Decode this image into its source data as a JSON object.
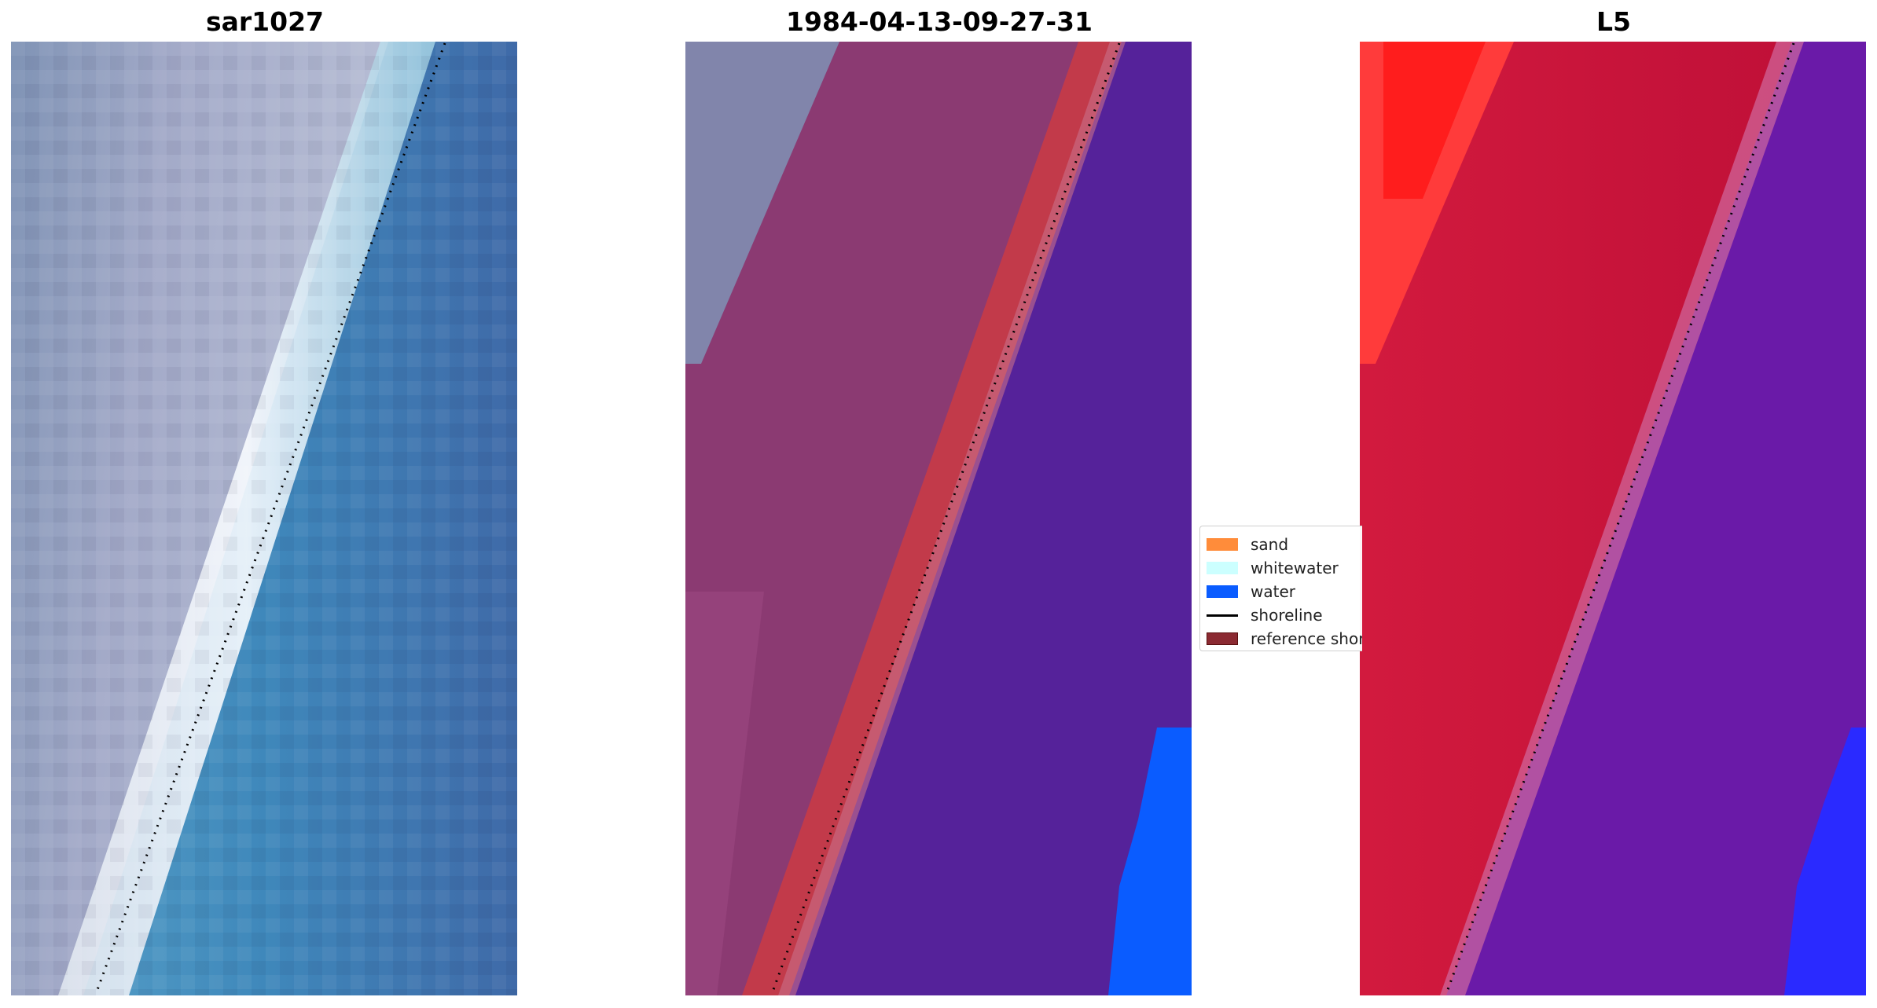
{
  "panels": [
    {
      "title": "sar1027"
    },
    {
      "title": "1984-04-13-09-27-31"
    },
    {
      "title": "L5"
    }
  ],
  "legend": {
    "entries": [
      {
        "label": "sand",
        "color": "#ff8c3a"
      },
      {
        "label": "whitewater",
        "color": "#ccffff"
      },
      {
        "label": "water",
        "color": "#0a5cff"
      },
      {
        "label": "shoreline",
        "color": "#000000"
      },
      {
        "label": "reference shoreline",
        "color": "#8b2a32"
      }
    ]
  },
  "colors": {
    "land_gray": "#9ea8c4",
    "sea_blue": "#4588bd",
    "classified_land": "#8b3a72",
    "classified_water": "#55229a",
    "sand_red": "#c8102e",
    "bright_red": "#ff1a1a"
  }
}
